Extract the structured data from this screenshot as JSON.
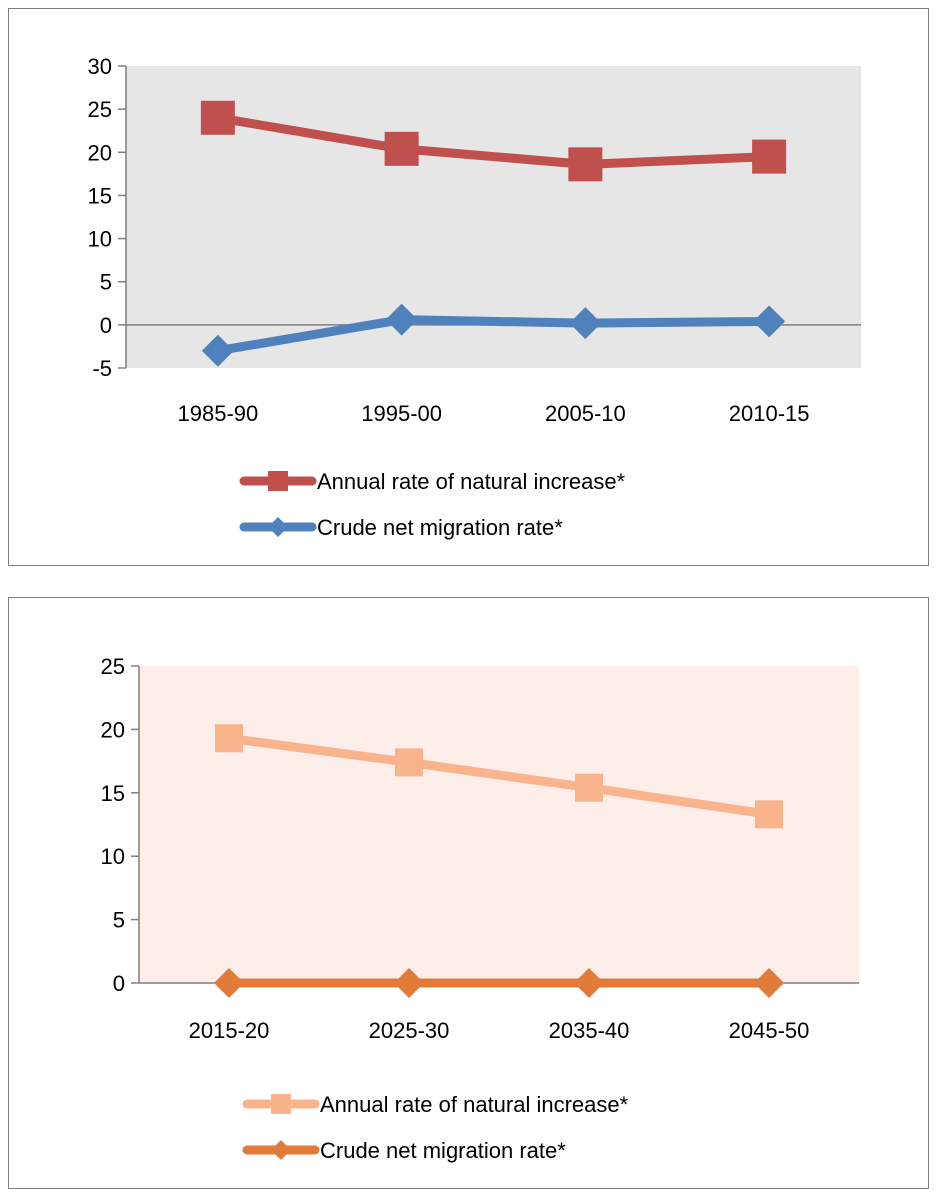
{
  "chart_data": [
    {
      "type": "line",
      "categories": [
        "1985-90",
        "1995-00",
        "2005-10",
        "2010-15"
      ],
      "ylim": [
        -5,
        30
      ],
      "yticks": [
        -5,
        0,
        5,
        10,
        15,
        20,
        25,
        30
      ],
      "plot_background": "#e6e6e6",
      "grid": false,
      "legend_position": "bottom",
      "series": [
        {
          "name": "Annual rate of natural increase*",
          "values": [
            24,
            20.4,
            18.6,
            19.5
          ],
          "color": "#c0504d",
          "marker": "square"
        },
        {
          "name": "Crude net migration rate*",
          "values": [
            -3,
            0.6,
            0.2,
            0.4
          ],
          "color": "#4f81bd",
          "marker": "diamond"
        }
      ]
    },
    {
      "type": "line",
      "categories": [
        "2015-20",
        "2025-30",
        "2035-40",
        "2045-50"
      ],
      "ylim": [
        0,
        25
      ],
      "yticks": [
        0,
        5,
        10,
        15,
        20,
        25
      ],
      "plot_background": "#fdeee9",
      "grid": false,
      "legend_position": "bottom",
      "series": [
        {
          "name": "Annual rate of natural increase*",
          "values": [
            19.3,
            17.4,
            15.4,
            13.3
          ],
          "color": "#fab48d",
          "marker": "square"
        },
        {
          "name": "Crude net migration rate*",
          "values": [
            0,
            0,
            0,
            0
          ],
          "color": "#e07b39",
          "marker": "diamond"
        }
      ]
    }
  ]
}
